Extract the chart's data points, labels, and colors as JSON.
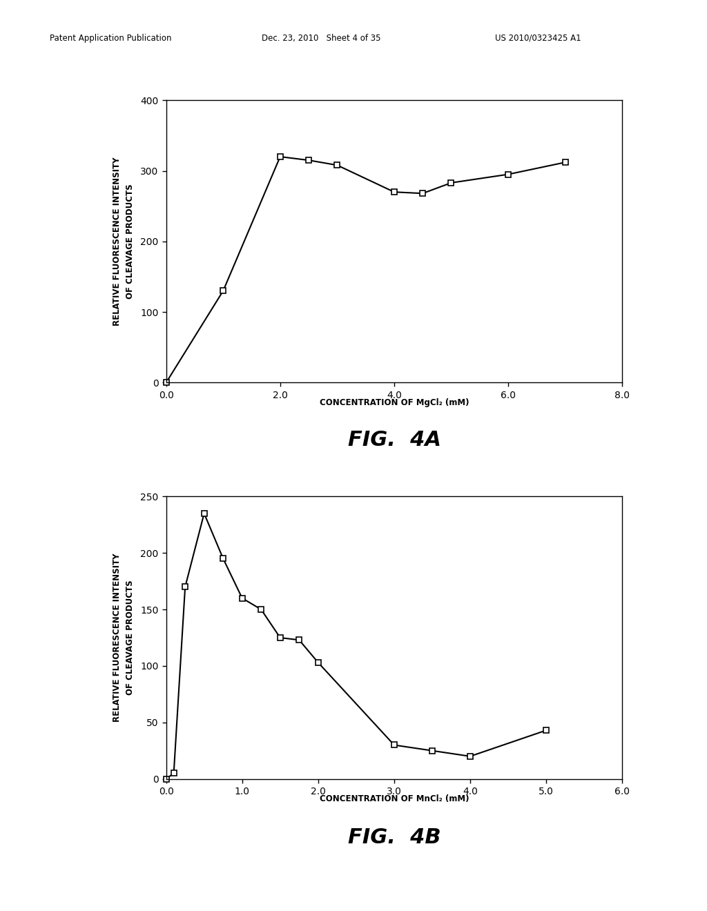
{
  "fig4a": {
    "x": [
      0.0,
      1.0,
      2.0,
      2.5,
      3.0,
      4.0,
      4.5,
      5.0,
      6.0,
      7.0
    ],
    "y": [
      0,
      130,
      320,
      315,
      308,
      270,
      268,
      283,
      295,
      312
    ],
    "xlim": [
      0.0,
      8.0
    ],
    "ylim": [
      0,
      400
    ],
    "xticks": [
      0.0,
      2.0,
      4.0,
      6.0,
      8.0
    ],
    "yticks": [
      0,
      100,
      200,
      300,
      400
    ],
    "xlabel": "CONCENTRATION OF MgCl₂ (mM)",
    "ylabel": "RELATIVE FLUORESCENCE INTENSITY\nOF CLEAVAGE PRODUCTS",
    "fig_label": "FIG.  4A"
  },
  "fig4b": {
    "x": [
      0.0,
      0.1,
      0.25,
      0.5,
      0.75,
      1.0,
      1.25,
      1.5,
      1.75,
      2.0,
      3.0,
      3.5,
      4.0,
      5.0
    ],
    "y": [
      0,
      5,
      170,
      235,
      195,
      160,
      150,
      125,
      123,
      103,
      30,
      25,
      20,
      43
    ],
    "xlim": [
      0.0,
      6.0
    ],
    "ylim": [
      0,
      250
    ],
    "xticks": [
      0.0,
      1.0,
      2.0,
      3.0,
      4.0,
      5.0,
      6.0
    ],
    "yticks": [
      0,
      50,
      100,
      150,
      200,
      250
    ],
    "xlabel": "CONCENTRATION OF MnCl₂ (mM)",
    "ylabel": "RELATIVE FLUORESCENCE INTENSITY\nOF CLEAVAGE PRODUCTS",
    "fig_label": "FIG.  4B"
  },
  "header_left": "Patent Application Publication",
  "header_mid": "Dec. 23, 2010   Sheet 4 of 35",
  "header_right": "US 2010/0323425 A1",
  "background_color": "#ffffff",
  "line_color": "#000000",
  "marker": "s",
  "marker_size": 6,
  "marker_facecolor": "#ffffff",
  "marker_edgecolor": "#000000",
  "line_width": 1.5,
  "tick_fontsize": 10,
  "label_fontsize": 8.5,
  "fig_label_fontsize": 22,
  "header_fontsize": 8.5
}
